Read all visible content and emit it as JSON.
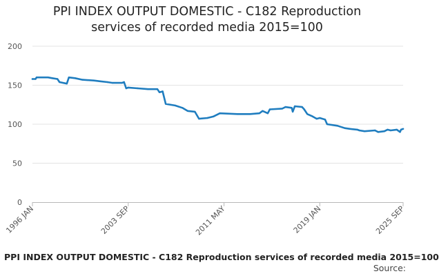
{
  "chart_data": {
    "type": "line",
    "title": "PPI INDEX OUTPUT DOMESTIC - C182 Reproduction services of recorded media 2015=100",
    "title_lines": [
      "PPI INDEX OUTPUT DOMESTIC - C182 Reproduction",
      "services of recorded media 2015=100"
    ],
    "xlabel": "",
    "ylabel": "",
    "ylim": [
      0,
      200
    ],
    "yticks": [
      "0",
      "50",
      "100",
      "150",
      "200"
    ],
    "xlim": [
      "1996-01",
      "2025-09"
    ],
    "xticks": [
      {
        "date": "1996-01",
        "label": "1996 JAN"
      },
      {
        "date": "2003-09",
        "label": "2003 SEP"
      },
      {
        "date": "2011-05",
        "label": "2011 MAY"
      },
      {
        "date": "2019-01",
        "label": "2019 JAN"
      },
      {
        "date": "2025-09",
        "label": "2025 SEP"
      }
    ],
    "grid": true,
    "legend": "none",
    "color": "#1f7dbf",
    "series": [
      {
        "values": [
          [
            "1996-01",
            158
          ],
          [
            "1996-04",
            158
          ],
          [
            "1996-05",
            160
          ],
          [
            "1997-04",
            160
          ],
          [
            "1997-08",
            159
          ],
          [
            "1998-01",
            158
          ],
          [
            "1998-03",
            154
          ],
          [
            "1998-10",
            152
          ],
          [
            "1998-12",
            160
          ],
          [
            "1999-06",
            159
          ],
          [
            "2000-01",
            157
          ],
          [
            "2000-12",
            156
          ],
          [
            "2001-06",
            155
          ],
          [
            "2002-01",
            154
          ],
          [
            "2002-06",
            153
          ],
          [
            "2003-03",
            153
          ],
          [
            "2003-05",
            154
          ],
          [
            "2003-07",
            146
          ],
          [
            "2003-09",
            147
          ],
          [
            "2004-06",
            146
          ],
          [
            "2005-04",
            145
          ],
          [
            "2006-01",
            145
          ],
          [
            "2006-03",
            141
          ],
          [
            "2006-06",
            142
          ],
          [
            "2006-09",
            126
          ],
          [
            "2007-06",
            124
          ],
          [
            "2008-01",
            121
          ],
          [
            "2008-06",
            117
          ],
          [
            "2009-01",
            116
          ],
          [
            "2009-05",
            107
          ],
          [
            "2010-01",
            108
          ],
          [
            "2010-07",
            110
          ],
          [
            "2011-01",
            114
          ],
          [
            "2012-06",
            113
          ],
          [
            "2013-06",
            113
          ],
          [
            "2014-03",
            114
          ],
          [
            "2014-06",
            117
          ],
          [
            "2014-11",
            114
          ],
          [
            "2015-01",
            119
          ],
          [
            "2016-01",
            120
          ],
          [
            "2016-04",
            122
          ],
          [
            "2016-10",
            121
          ],
          [
            "2016-11",
            116
          ],
          [
            "2017-01",
            123
          ],
          [
            "2017-08",
            122
          ],
          [
            "2017-10",
            119
          ],
          [
            "2018-01",
            113
          ],
          [
            "2018-06",
            110
          ],
          [
            "2018-10",
            107
          ],
          [
            "2019-01",
            108
          ],
          [
            "2019-06",
            106
          ],
          [
            "2019-08",
            100
          ],
          [
            "2020-06",
            98
          ],
          [
            "2021-01",
            95
          ],
          [
            "2021-06",
            94
          ],
          [
            "2022-01",
            93
          ],
          [
            "2022-03",
            92
          ],
          [
            "2022-08",
            91
          ],
          [
            "2023-06",
            92
          ],
          [
            "2023-09",
            90
          ],
          [
            "2024-03",
            91
          ],
          [
            "2024-06",
            93
          ],
          [
            "2024-09",
            92
          ],
          [
            "2025-03",
            93
          ],
          [
            "2025-06",
            90
          ],
          [
            "2025-07",
            93
          ],
          [
            "2025-09",
            94
          ]
        ]
      }
    ],
    "footer_title": "PPI INDEX OUTPUT DOMESTIC - C182 Reproduction services of recorded media 2015=100",
    "source_label": "Source:"
  }
}
